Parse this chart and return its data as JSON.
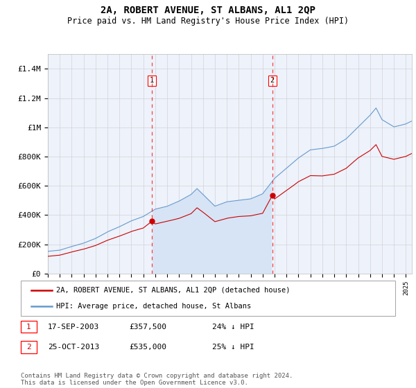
{
  "title": "2A, ROBERT AVENUE, ST ALBANS, AL1 2QP",
  "subtitle": "Price paid vs. HM Land Registry's House Price Index (HPI)",
  "ylim": [
    0,
    1500000
  ],
  "yticks": [
    0,
    200000,
    400000,
    600000,
    800000,
    1000000,
    1200000,
    1400000
  ],
  "ytick_labels": [
    "£0",
    "£200K",
    "£400K",
    "£600K",
    "£800K",
    "£1M",
    "£1.2M",
    "£1.4M"
  ],
  "xlim_start": 1995.0,
  "xlim_end": 2025.5,
  "background_color": "#ffffff",
  "plot_bg_color": "#edf2fb",
  "grid_color": "#cccccc",
  "sale1_date": 2003.71,
  "sale1_price": 357500,
  "sale1_label": "1",
  "sale1_text": "17-SEP-2003",
  "sale1_price_text": "£357,500",
  "sale1_hpi_text": "24% ↓ HPI",
  "sale2_date": 2013.81,
  "sale2_price": 535000,
  "sale2_label": "2",
  "sale2_text": "25-OCT-2013",
  "sale2_price_text": "£535,000",
  "sale2_hpi_text": "25% ↓ HPI",
  "red_line_color": "#cc0000",
  "blue_line_color": "#6699cc",
  "blue_fill_color": "#d6e4f5",
  "legend1_text": "2A, ROBERT AVENUE, ST ALBANS, AL1 2QP (detached house)",
  "legend2_text": "HPI: Average price, detached house, St Albans",
  "footer_text": "Contains HM Land Registry data © Crown copyright and database right 2024.\nThis data is licensed under the Open Government Licence v3.0."
}
